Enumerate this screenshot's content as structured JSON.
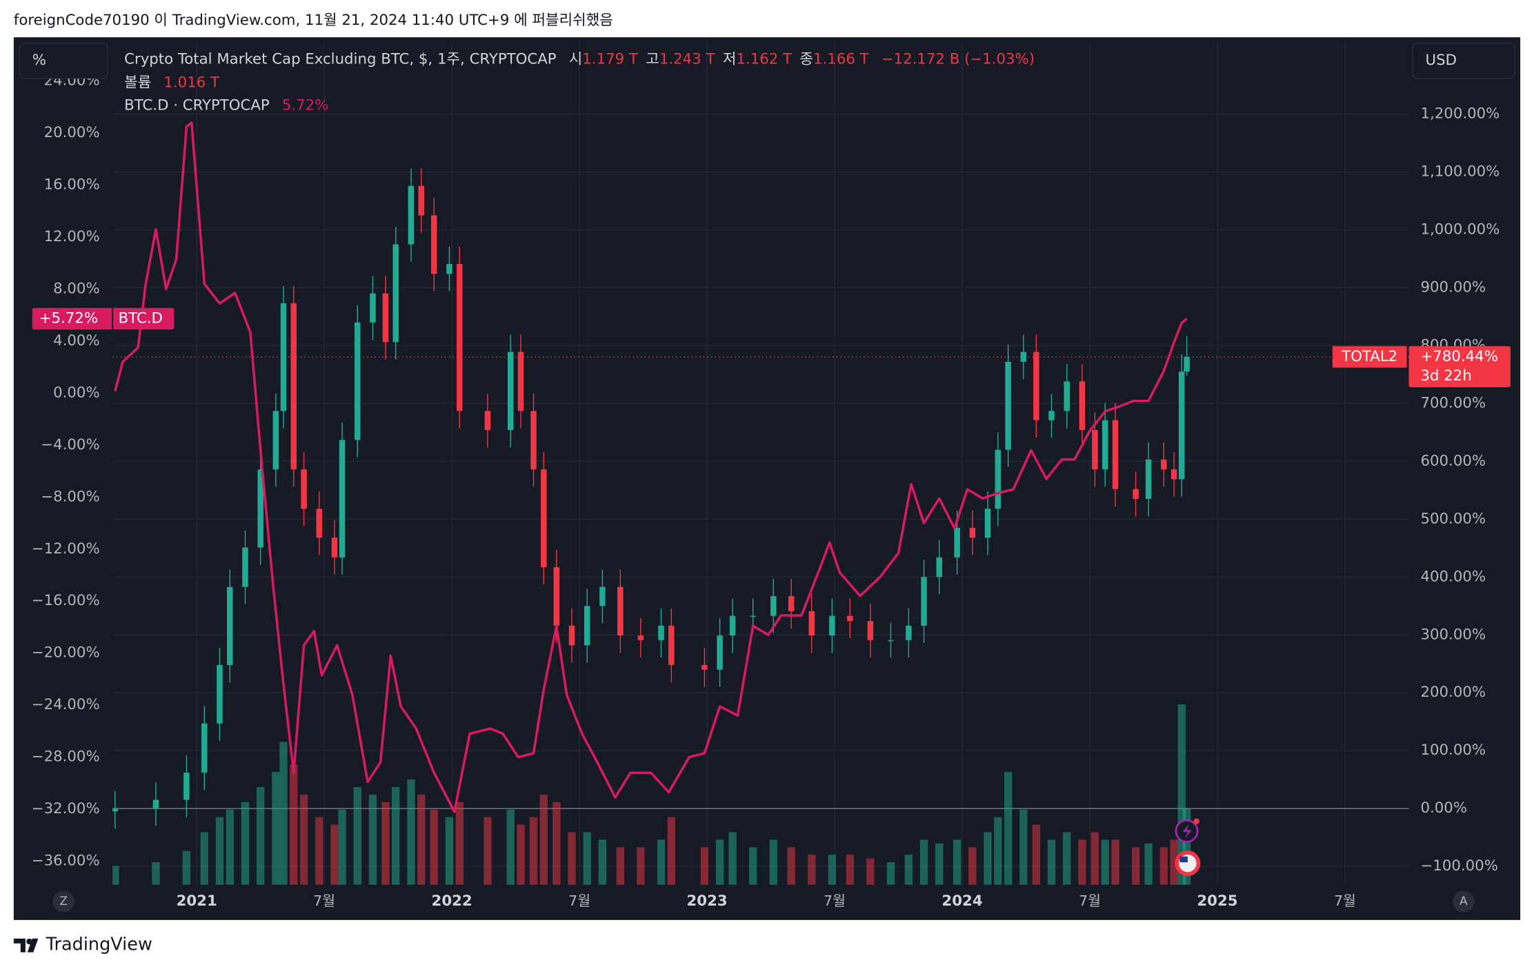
{
  "header": {
    "text": "foreignCode70190 이 TradingView.com, 11월 21, 2024 11:40 UTC+9 에 퍼블리쉬했음"
  },
  "footer": {
    "brand": "TradingView"
  },
  "toolbar": {
    "left_button": "%",
    "right_button": "USD",
    "left_corner": "Z",
    "right_corner": "A"
  },
  "chart_data": {
    "type": "candlestick",
    "title": "Crypto Total Market Cap Excluding BTC, $, 1주, CRYPTOCAP",
    "ohlc_labels": [
      {
        "key": "시",
        "value": "1.179 T"
      },
      {
        "key": "고",
        "value": "1.243 T"
      },
      {
        "key": "저",
        "value": "1.162 T"
      },
      {
        "key": "종",
        "value": "1.166 T"
      }
    ],
    "change_label": "−12.172 B (−1.03%)",
    "volume_name": "볼륨",
    "volume_label": "1.016 T",
    "price_label": {
      "name": "TOTAL2",
      "text": "+780.44%",
      "countdown": "3d 22h"
    },
    "xlim": [
      2020.67,
      2025.75
    ],
    "xticks": [
      2021,
      {
        "value": 2021.5,
        "label": "7월"
      },
      2022,
      {
        "value": 2022.5,
        "label": "7월"
      },
      2023,
      {
        "value": 2023.5,
        "label": "7월"
      },
      2024,
      {
        "value": 2024.5,
        "label": "7월"
      },
      2025,
      {
        "value": 2025.5,
        "label": "7월"
      }
    ],
    "ylim": [
      -37.82,
      27.22
    ],
    "yticks": [
      {
        "value": 24,
        "label": "24.00%"
      },
      {
        "value": 20,
        "label": "20.00%"
      },
      {
        "value": 16,
        "label": "16.00%"
      },
      {
        "value": 12,
        "label": "12.00%"
      },
      {
        "value": 8,
        "label": "8.00%"
      },
      {
        "value": 4,
        "label": "4.00%"
      },
      {
        "value": 0,
        "label": "0.00%"
      },
      {
        "value": -4,
        "label": "−4.00%"
      },
      {
        "value": -8,
        "label": "−8.00%"
      },
      {
        "value": -12,
        "label": "−12.00%"
      },
      {
        "value": -16,
        "label": "−16.00%"
      },
      {
        "value": -20,
        "label": "−20.00%"
      },
      {
        "value": -24,
        "label": "−24.00%"
      },
      {
        "value": -28,
        "label": "−28.00%"
      },
      {
        "value": -32,
        "label": "−32.00%"
      },
      {
        "value": -36,
        "label": "−36.00%"
      }
    ],
    "y2lim": [
      -131.8,
      1329.4
    ],
    "y2ticks": [
      {
        "value": 1200,
        "label": "1,200.00%"
      },
      {
        "value": 1100,
        "label": "1,100.00%"
      },
      {
        "value": 1000,
        "label": "1,000.00%"
      },
      {
        "value": 900,
        "label": "900.00%"
      },
      {
        "value": 800,
        "label": "800.00%"
      },
      {
        "value": 700,
        "label": "700.00%"
      },
      {
        "value": 600,
        "label": "600.00%"
      },
      {
        "value": 500,
        "label": "500.00%"
      },
      {
        "value": 400,
        "label": "400.00%"
      },
      {
        "value": 300,
        "label": "300.00%"
      },
      {
        "value": 200,
        "label": "200.00%"
      },
      {
        "value": 100,
        "label": "100.00%"
      },
      {
        "value": 0,
        "label": "0.00%"
      },
      {
        "value": -100,
        "label": "−100.00%"
      }
    ],
    "grid": true,
    "up_color": "#22ab94",
    "down_color": "#f23645",
    "vlim": [
      0,
      2.6
    ],
    "candles": {
      "name": "TOTAL2",
      "axis": "y2",
      "x": [
        2020.68,
        2020.84,
        2020.96,
        2021.03,
        2021.09,
        2021.13,
        2021.19,
        2021.25,
        2021.31,
        2021.34,
        2021.38,
        2021.42,
        2021.48,
        2021.54,
        2021.57,
        2021.63,
        2021.69,
        2021.74,
        2021.78,
        2021.84,
        2021.88,
        2021.93,
        2021.99,
        2022.03,
        2022.14,
        2022.23,
        2022.27,
        2022.32,
        2022.36,
        2022.41,
        2022.47,
        2022.53,
        2022.59,
        2022.66,
        2022.74,
        2022.82,
        2022.86,
        2022.99,
        2023.05,
        2023.1,
        2023.18,
        2023.26,
        2023.33,
        2023.41,
        2023.49,
        2023.56,
        2023.64,
        2023.72,
        2023.79,
        2023.85,
        2023.91,
        2023.98,
        2024.04,
        2024.1,
        2024.14,
        2024.18,
        2024.24,
        2024.29,
        2024.35,
        2024.41,
        2024.47,
        2024.52,
        2024.56,
        2024.6,
        2024.68,
        2024.73,
        2024.79,
        2024.83,
        2024.86,
        2024.88
      ],
      "open": [
        -5,
        0,
        15,
        62,
        147,
        248,
        383,
        451,
        586,
        687,
        873,
        586,
        518,
        468,
        434,
        637,
        840,
        890,
        806,
        975,
        1076,
        1025,
        924,
        941,
        687,
        654,
        789,
        687,
        586,
        417,
        316,
        282,
        350,
        383,
        299,
        291,
        316,
        248,
        240,
        299,
        333,
        333,
        367,
        341,
        299,
        333,
        324,
        291,
        291,
        316,
        400,
        434,
        485,
        468,
        518,
        620,
        772,
        789,
        671,
        687,
        738,
        654,
        586,
        671,
        552,
        535,
        603,
        586,
        569,
        755
      ],
      "high": [
        30,
        45,
        92,
        177,
        278,
        413,
        481,
        616,
        717,
        903,
        903,
        616,
        548,
        498,
        667,
        870,
        920,
        920,
        1005,
        1106,
        1106,
        1055,
        971,
        971,
        717,
        819,
        819,
        717,
        616,
        447,
        346,
        380,
        413,
        413,
        329,
        346,
        346,
        278,
        329,
        363,
        363,
        397,
        397,
        371,
        363,
        363,
        354,
        321,
        346,
        430,
        464,
        515,
        515,
        548,
        650,
        802,
        819,
        819,
        717,
        768,
        768,
        684,
        701,
        701,
        582,
        633,
        633,
        616,
        785,
        817
      ],
      "low": [
        -35,
        -30,
        -15,
        32,
        117,
        218,
        353,
        421,
        556,
        657,
        556,
        488,
        438,
        404,
        404,
        607,
        810,
        776,
        776,
        945,
        995,
        894,
        894,
        657,
        624,
        624,
        657,
        556,
        387,
        286,
        252,
        252,
        320,
        269,
        261,
        261,
        218,
        210,
        210,
        269,
        303,
        303,
        311,
        269,
        269,
        294,
        261,
        261,
        261,
        286,
        370,
        404,
        438,
        438,
        488,
        590,
        742,
        641,
        641,
        657,
        624,
        556,
        556,
        522,
        505,
        505,
        556,
        539,
        539,
        748
      ],
      "close": [
        0,
        15,
        62,
        147,
        248,
        383,
        451,
        586,
        687,
        873,
        586,
        518,
        468,
        434,
        637,
        840,
        890,
        806,
        975,
        1076,
        1025,
        924,
        941,
        687,
        654,
        789,
        687,
        586,
        417,
        316,
        282,
        350,
        383,
        299,
        291,
        316,
        248,
        240,
        299,
        333,
        333,
        367,
        341,
        299,
        333,
        324,
        291,
        291,
        316,
        400,
        434,
        485,
        468,
        518,
        620,
        772,
        789,
        671,
        687,
        738,
        654,
        586,
        671,
        552,
        535,
        603,
        586,
        569,
        755,
        780.44
      ],
      "volume": [
        0.25,
        0.3,
        0.45,
        0.7,
        0.9,
        1.0,
        1.1,
        1.3,
        1.5,
        1.9,
        1.6,
        1.2,
        0.9,
        0.8,
        1.0,
        1.3,
        1.2,
        1.1,
        1.3,
        1.4,
        1.2,
        1.0,
        0.9,
        1.1,
        0.9,
        1.0,
        0.8,
        0.9,
        1.2,
        1.1,
        0.7,
        0.7,
        0.6,
        0.5,
        0.5,
        0.6,
        0.9,
        0.5,
        0.6,
        0.7,
        0.5,
        0.6,
        0.5,
        0.4,
        0.4,
        0.4,
        0.35,
        0.3,
        0.4,
        0.6,
        0.55,
        0.6,
        0.5,
        0.7,
        0.9,
        1.5,
        1.0,
        0.8,
        0.6,
        0.7,
        0.6,
        0.7,
        0.6,
        0.6,
        0.5,
        0.55,
        0.5,
        0.6,
        2.4,
        1.016
      ]
    },
    "series": [
      {
        "name": "BTC.D",
        "legend": "BTC.D · CRYPTOCAP",
        "value_label": "5.72%",
        "badge_label": "+5.72%",
        "color": "#d81b60",
        "x": [
          2020.68,
          2020.71,
          2020.77,
          2020.8,
          2020.84,
          2020.88,
          2020.92,
          2020.96,
          2020.98,
          2021.03,
          2021.09,
          2021.15,
          2021.21,
          2021.25,
          2021.3,
          2021.34,
          2021.38,
          2021.42,
          2021.46,
          2021.49,
          2021.55,
          2021.61,
          2021.67,
          2021.72,
          2021.76,
          2021.8,
          2021.86,
          2021.93,
          2022.01,
          2022.07,
          2022.15,
          2022.2,
          2022.26,
          2022.32,
          2022.36,
          2022.41,
          2022.45,
          2022.51,
          2022.57,
          2022.64,
          2022.7,
          2022.78,
          2022.85,
          2022.93,
          2022.99,
          2023.05,
          2023.12,
          2023.18,
          2023.24,
          2023.29,
          2023.37,
          2023.43,
          2023.48,
          2023.52,
          2023.6,
          2023.68,
          2023.75,
          2023.8,
          2023.85,
          2023.91,
          2023.97,
          2024.02,
          2024.08,
          2024.14,
          2024.2,
          2024.27,
          2024.33,
          2024.39,
          2024.44,
          2024.5,
          2024.56,
          2024.62,
          2024.67,
          2024.73,
          2024.79,
          2024.83,
          2024.86,
          2024.88
        ],
        "values": [
          0.15,
          2.4,
          3.5,
          8.4,
          12.6,
          8.0,
          10.3,
          20.5,
          20.8,
          8.4,
          6.9,
          7.7,
          4.7,
          -4.4,
          -14.9,
          -22.4,
          -29.2,
          -19.4,
          -18.3,
          -21.7,
          -19.4,
          -23.2,
          -29.9,
          -28.4,
          -20.2,
          -24.1,
          -25.8,
          -29.2,
          -32.2,
          -26.2,
          -25.8,
          -26.2,
          -28.0,
          -27.7,
          -22.8,
          -17.9,
          -23.2,
          -26.2,
          -28.4,
          -31.1,
          -29.2,
          -29.2,
          -30.7,
          -28.0,
          -27.7,
          -24.1,
          -24.8,
          -17.9,
          -18.6,
          -17.1,
          -17.1,
          -14.1,
          -11.5,
          -13.8,
          -15.6,
          -14.1,
          -12.3,
          -7.0,
          -10.0,
          -8.1,
          -10.4,
          -7.4,
          -8.1,
          -7.7,
          -7.4,
          -4.4,
          -6.6,
          -5.1,
          -5.1,
          -2.9,
          -1.4,
          -1.0,
          -0.6,
          -0.6,
          1.7,
          3.9,
          5.4,
          5.72
        ]
      }
    ]
  }
}
